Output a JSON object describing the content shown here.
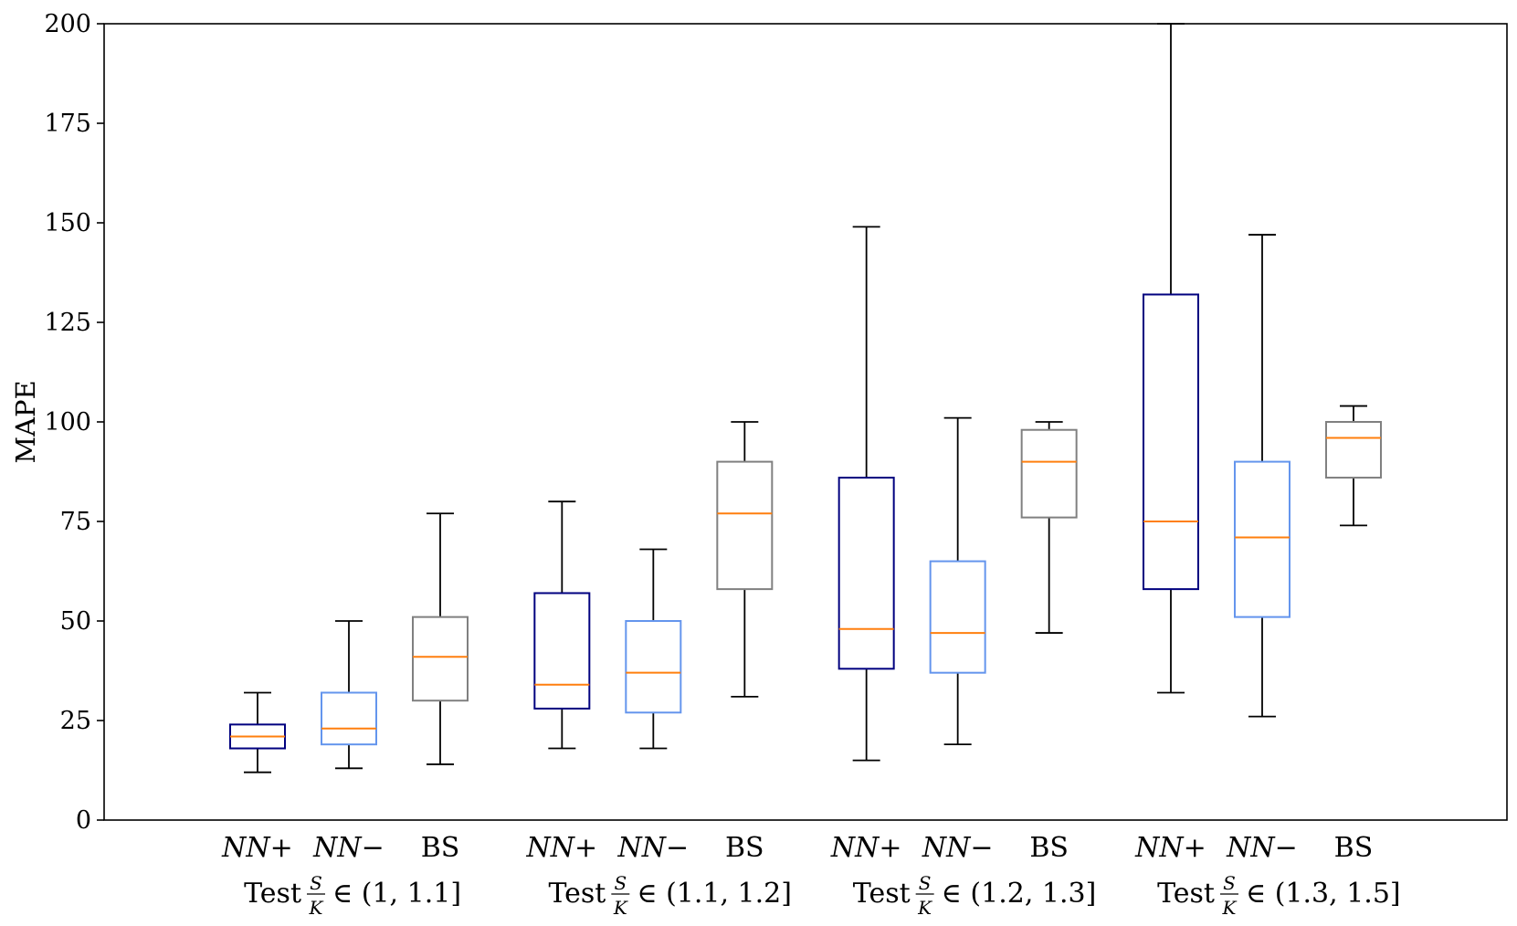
{
  "chart_data": {
    "type": "boxplot",
    "ylabel": "MAPE",
    "xlabel": "",
    "ylim": [
      0,
      200
    ],
    "yticks": [
      "0",
      "25",
      "50",
      "75",
      "100",
      "125",
      "150",
      "175",
      "200"
    ],
    "grid": false,
    "colors": {
      "NN+": "#00007f",
      "NN-": "#6495ed",
      "BS": "#808080",
      "median": "#ff7f0e",
      "whisker": "#000000"
    },
    "groups": [
      {
        "label": {
          "prefix": "Test",
          "frac_num": "S",
          "frac_den": "K",
          "range": "∈ (1, 1.1]"
        },
        "boxes": [
          {
            "name": "NN+",
            "whislo": 12,
            "q1": 18,
            "med": 21,
            "q3": 24,
            "whishi": 32
          },
          {
            "name": "NN−",
            "whislo": 13,
            "q1": 19,
            "med": 23,
            "q3": 32,
            "whishi": 50
          },
          {
            "name": "BS",
            "whislo": 14,
            "q1": 30,
            "med": 41,
            "q3": 51,
            "whishi": 77
          }
        ]
      },
      {
        "label": {
          "prefix": "Test",
          "frac_num": "S",
          "frac_den": "K",
          "range": "∈ (1.1, 1.2]"
        },
        "boxes": [
          {
            "name": "NN+",
            "whislo": 18,
            "q1": 28,
            "med": 34,
            "q3": 57,
            "whishi": 80
          },
          {
            "name": "NN−",
            "whislo": 18,
            "q1": 27,
            "med": 37,
            "q3": 50,
            "whishi": 68
          },
          {
            "name": "BS",
            "whislo": 31,
            "q1": 58,
            "med": 77,
            "q3": 90,
            "whishi": 100
          }
        ]
      },
      {
        "label": {
          "prefix": "Test",
          "frac_num": "S",
          "frac_den": "K",
          "range": "∈ (1.2, 1.3]"
        },
        "boxes": [
          {
            "name": "NN+",
            "whislo": 15,
            "q1": 38,
            "med": 48,
            "q3": 86,
            "whishi": 149
          },
          {
            "name": "NN−",
            "whislo": 19,
            "q1": 37,
            "med": 47,
            "q3": 65,
            "whishi": 101
          },
          {
            "name": "BS",
            "whislo": 47,
            "q1": 76,
            "med": 90,
            "q3": 98,
            "whishi": 100
          }
        ]
      },
      {
        "label": {
          "prefix": "Test",
          "frac_num": "S",
          "frac_den": "K",
          "range": "∈ (1.3, 1.5]"
        },
        "boxes": [
          {
            "name": "NN+",
            "whislo": 32,
            "q1": 58,
            "med": 75,
            "q3": 132,
            "whishi": 200
          },
          {
            "name": "NN−",
            "whislo": 26,
            "q1": 51,
            "med": 71,
            "q3": 90,
            "whishi": 147
          },
          {
            "name": "BS",
            "whislo": 74,
            "q1": 86,
            "med": 96,
            "q3": 100,
            "whishi": 104
          }
        ]
      }
    ]
  }
}
